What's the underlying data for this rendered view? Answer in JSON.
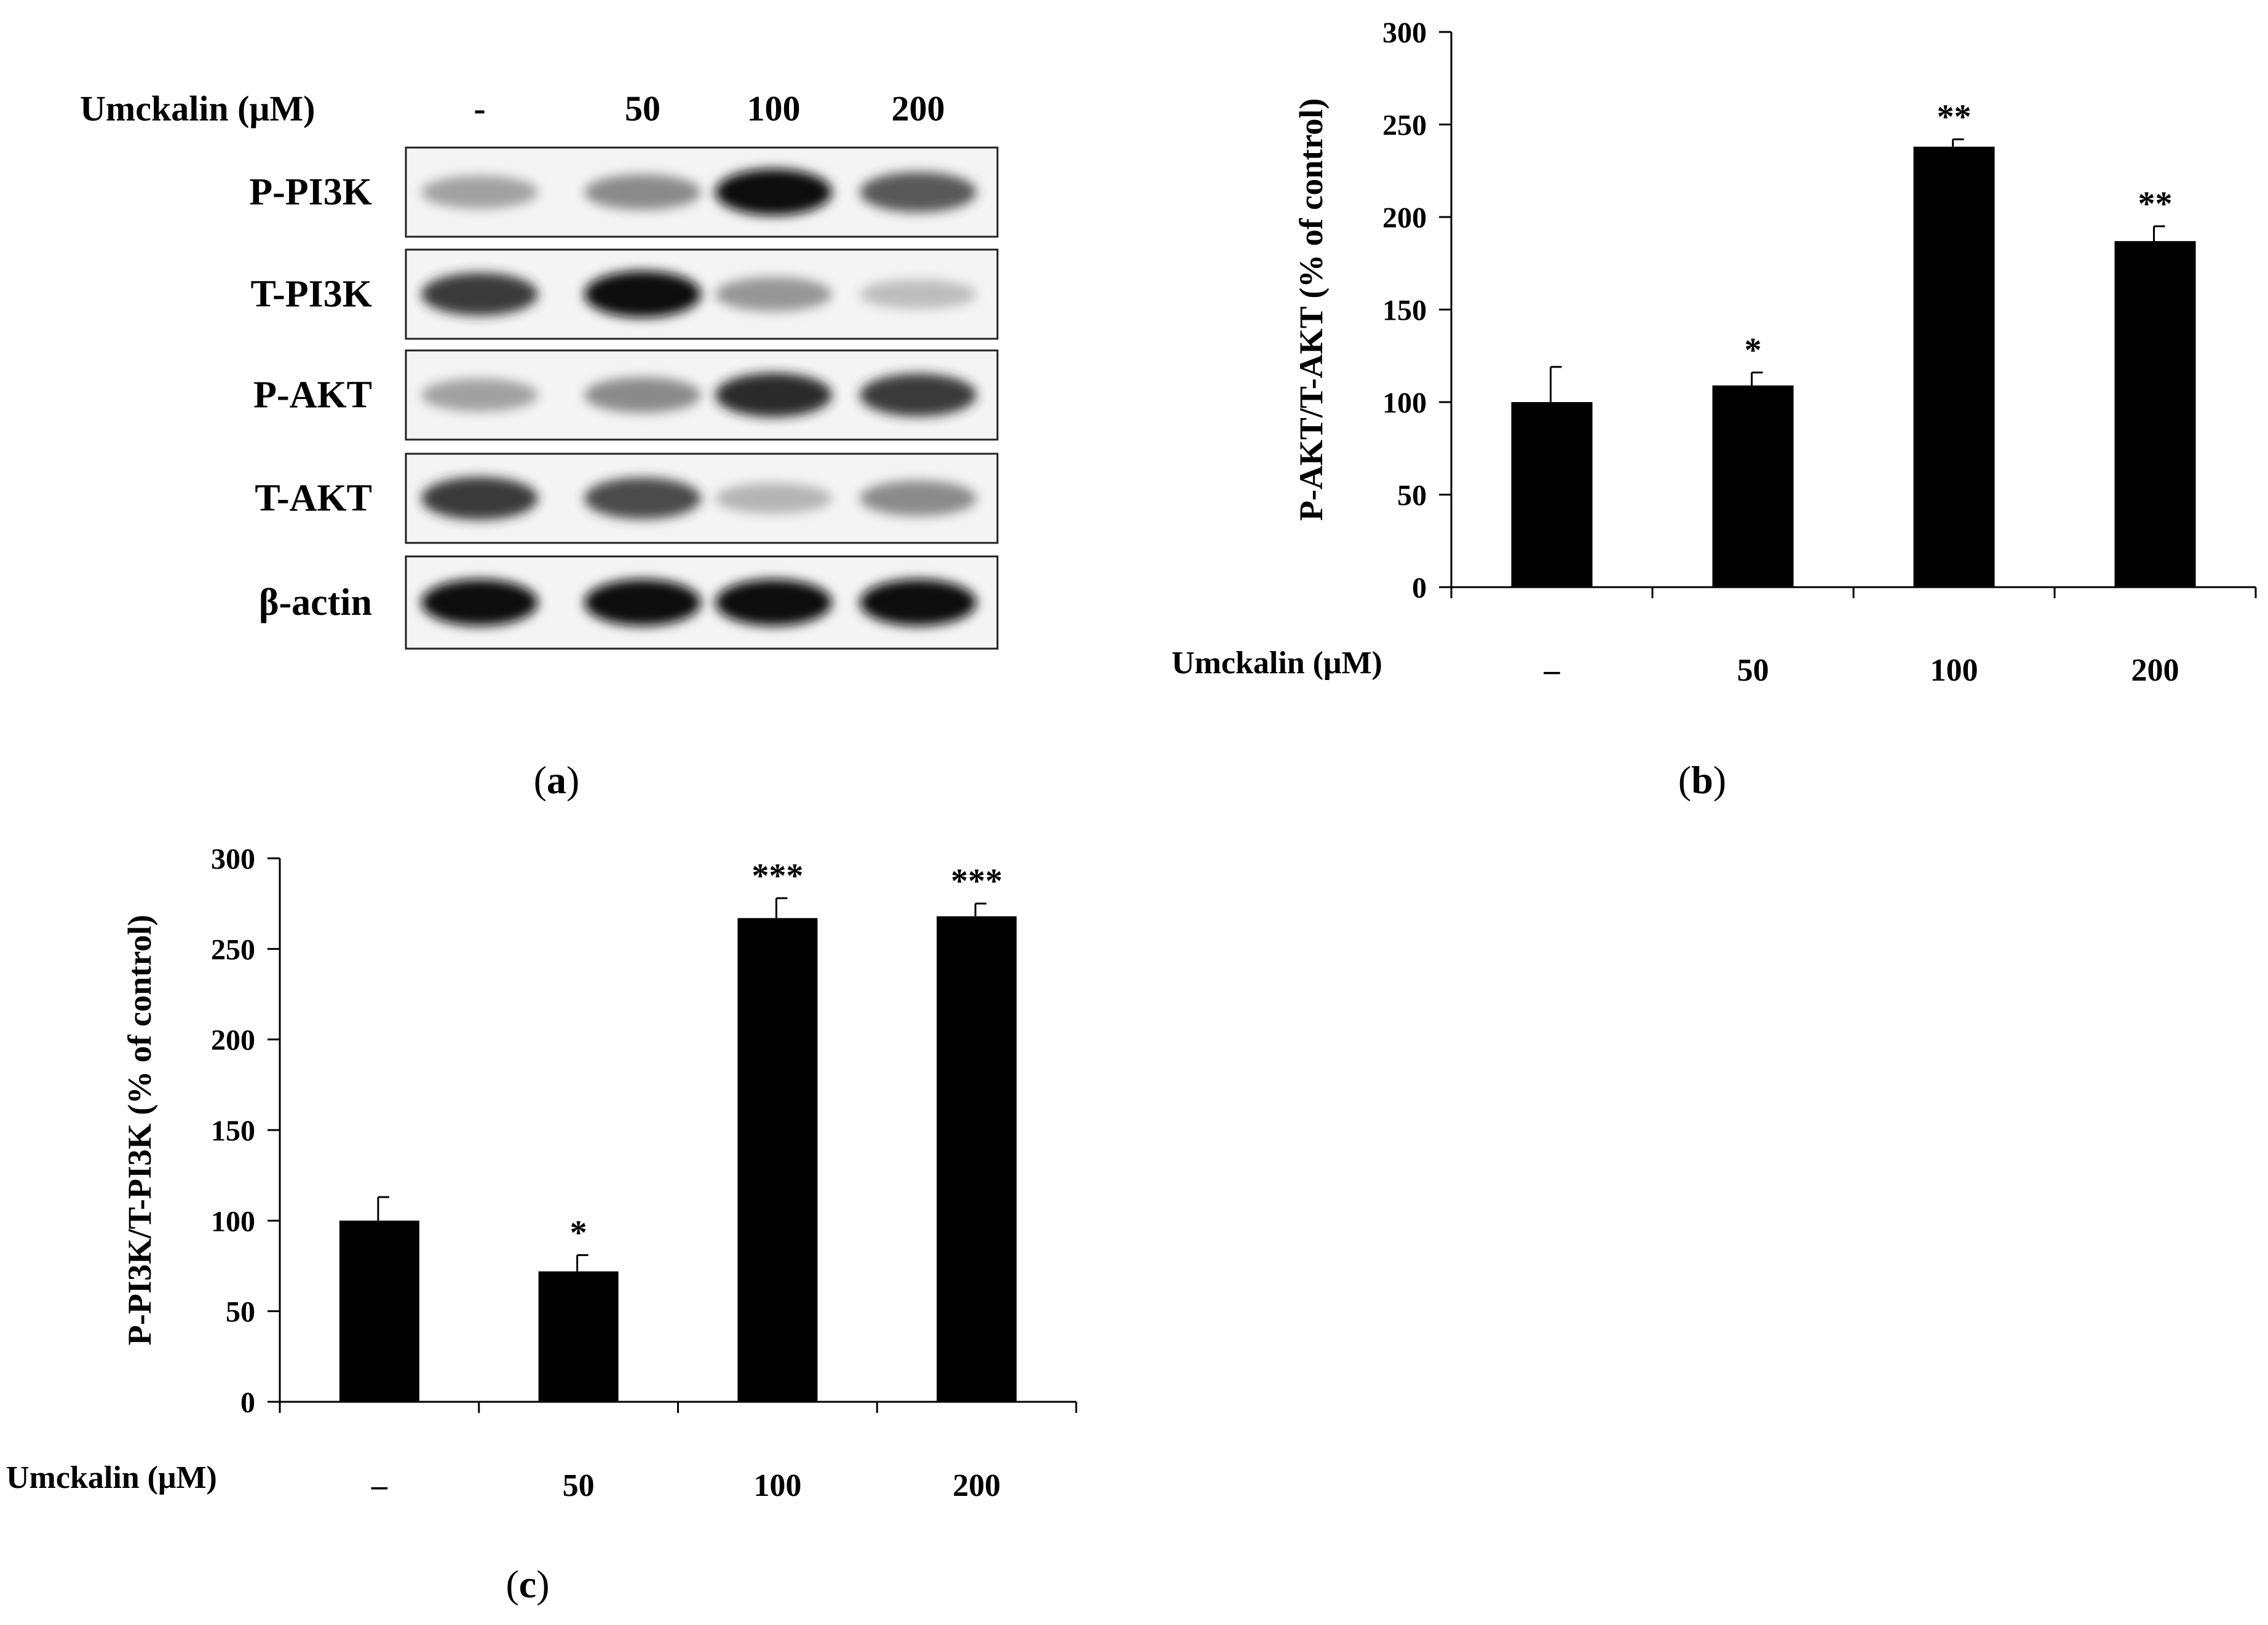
{
  "panel_a": {
    "caption": "a",
    "treatment_label": "Umckalin (μM)",
    "lanes": [
      "-",
      "50",
      "100",
      "200"
    ],
    "blots": [
      {
        "name": "P-PI3K",
        "band_intensity": [
          0.45,
          0.55,
          1.0,
          0.75
        ]
      },
      {
        "name": "T-PI3K",
        "band_intensity": [
          0.85,
          1.0,
          0.5,
          0.3
        ]
      },
      {
        "name": "P-AKT",
        "band_intensity": [
          0.45,
          0.55,
          0.9,
          0.85
        ]
      },
      {
        "name": "T-AKT",
        "band_intensity": [
          0.85,
          0.8,
          0.35,
          0.55
        ]
      },
      {
        "name": "β-actin",
        "band_intensity": [
          1.0,
          1.0,
          1.0,
          1.0
        ]
      }
    ]
  },
  "chart_data": [
    {
      "panel": "b",
      "type": "bar",
      "categories": [
        "–",
        "50",
        "100",
        "200"
      ],
      "values": [
        100,
        109,
        238,
        187
      ],
      "errors": [
        19,
        7,
        4,
        8
      ],
      "annotations": [
        "",
        "*",
        "**",
        "**"
      ],
      "ylabel": "P-AKT/T-AKT (% of control)",
      "xlabel": "Umckalin (μM)",
      "ylim": [
        0,
        300
      ],
      "yticks": [
        0,
        50,
        100,
        150,
        200,
        250,
        300
      ],
      "bar_color": "#000000"
    },
    {
      "panel": "c",
      "type": "bar",
      "categories": [
        "–",
        "50",
        "100",
        "200"
      ],
      "values": [
        100,
        72,
        267,
        268
      ],
      "errors": [
        13,
        9,
        11,
        7
      ],
      "annotations": [
        "",
        "*",
        "***",
        "***"
      ],
      "ylabel": "P-PI3K/T-PI3K (% of control)",
      "xlabel": "Umckalin (μM)",
      "ylim": [
        0,
        300
      ],
      "yticks": [
        0,
        50,
        100,
        150,
        200,
        250,
        300
      ],
      "bar_color": "#000000"
    }
  ]
}
